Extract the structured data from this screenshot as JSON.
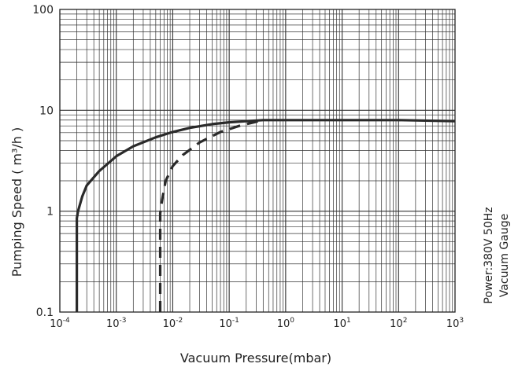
{
  "chart_data": {
    "type": "line",
    "xscale": "log",
    "yscale": "log",
    "xlim": [
      0.0001,
      1000
    ],
    "ylim": [
      0.1,
      100
    ],
    "x_ticks": [
      {
        "base": "10",
        "exp": "-4",
        "value": 0.0001
      },
      {
        "base": "10",
        "exp": "-3",
        "value": 0.001
      },
      {
        "base": "10",
        "exp": "-2",
        "value": 0.01
      },
      {
        "base": "10",
        "exp": "-1",
        "value": 0.1
      },
      {
        "base": "10",
        "exp": "0",
        "value": 1
      },
      {
        "base": "10",
        "exp": "1",
        "value": 10
      },
      {
        "base": "10",
        "exp": "2",
        "value": 100
      },
      {
        "base": "10",
        "exp": "3",
        "value": 1000
      }
    ],
    "y_ticks": [
      {
        "label": "0.1",
        "value": 0.1
      },
      {
        "label": "1",
        "value": 1
      },
      {
        "label": "10",
        "value": 10
      },
      {
        "label": "100",
        "value": 100
      }
    ],
    "xlabel": "Vacuum Pressure(mbar)",
    "ylabel": "Pumping Speed ( m³/h )",
    "grid": true,
    "side_labels": [
      "Power:380V 50Hz",
      "Vacuum Gauge"
    ],
    "series": [
      {
        "style": "solid",
        "x": [
          0.0002,
          0.0002,
          0.00021,
          0.00025,
          0.0003,
          0.0005,
          0.001,
          0.002,
          0.005,
          0.01,
          0.02,
          0.05,
          0.1,
          0.2,
          0.4,
          1,
          10,
          100,
          1000
        ],
        "y": [
          0.1,
          0.85,
          1.0,
          1.4,
          1.8,
          2.5,
          3.5,
          4.4,
          5.4,
          6.1,
          6.7,
          7.3,
          7.6,
          7.8,
          8.0,
          8.0,
          8.0,
          8.0,
          7.8
        ]
      },
      {
        "style": "dashed",
        "x": [
          0.006,
          0.006,
          0.0065,
          0.0075,
          0.01,
          0.015,
          0.03,
          0.07,
          0.15,
          0.3,
          0.4
        ],
        "y": [
          0.1,
          0.95,
          1.3,
          2.0,
          2.8,
          3.6,
          4.8,
          6.1,
          7.0,
          7.7,
          8.0
        ]
      }
    ]
  }
}
